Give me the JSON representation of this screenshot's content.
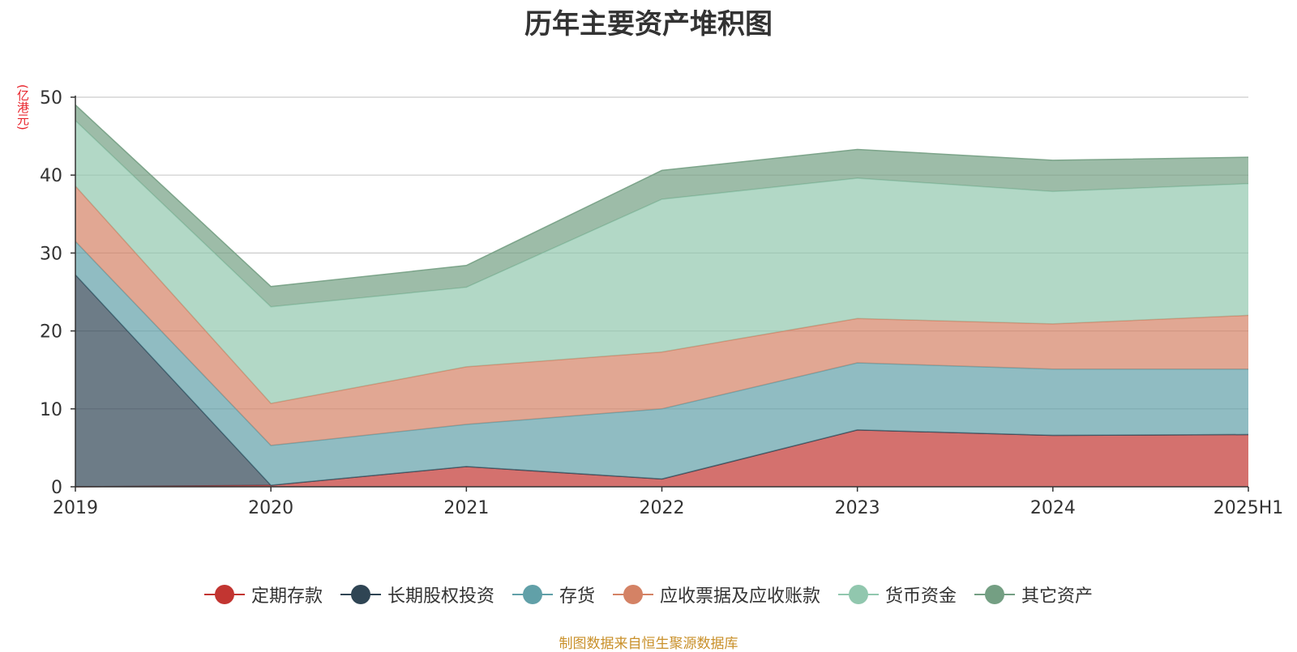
{
  "chart_data": {
    "type": "area",
    "stacked": true,
    "title": "历年主要资产堆积图",
    "ylabel": "(亿港元)",
    "ylim": [
      0,
      50
    ],
    "yticks": [
      0,
      10,
      20,
      30,
      40,
      50
    ],
    "categories": [
      "2019",
      "2020",
      "2021",
      "2022",
      "2023",
      "2024",
      "2025H1"
    ],
    "series": [
      {
        "name": "定期存款",
        "color": "#c23531",
        "values": [
          0,
          0.2,
          2.6,
          1.0,
          7.3,
          6.6,
          6.7
        ]
      },
      {
        "name": "长期股权投资",
        "color": "#2f4554",
        "values": [
          27.2,
          0,
          0,
          0,
          0,
          0,
          0
        ]
      },
      {
        "name": "存货",
        "color": "#61a0a8",
        "values": [
          4.3,
          5.1,
          5.4,
          9.0,
          8.6,
          8.5,
          8.4
        ]
      },
      {
        "name": "应收票据及应收账款",
        "color": "#d48265",
        "values": [
          7.1,
          5.4,
          7.4,
          7.3,
          5.7,
          5.8,
          6.9
        ]
      },
      {
        "name": "货币资金",
        "color": "#91c7ae",
        "values": [
          8.4,
          12.4,
          10.2,
          19.6,
          18.0,
          17.0,
          16.9
        ]
      },
      {
        "name": "其它资产",
        "color": "#749f83",
        "values": [
          2.0,
          2.6,
          2.8,
          3.7,
          3.7,
          4.0,
          3.4
        ]
      }
    ]
  },
  "source_note": "制图数据来自恒生聚源数据库"
}
